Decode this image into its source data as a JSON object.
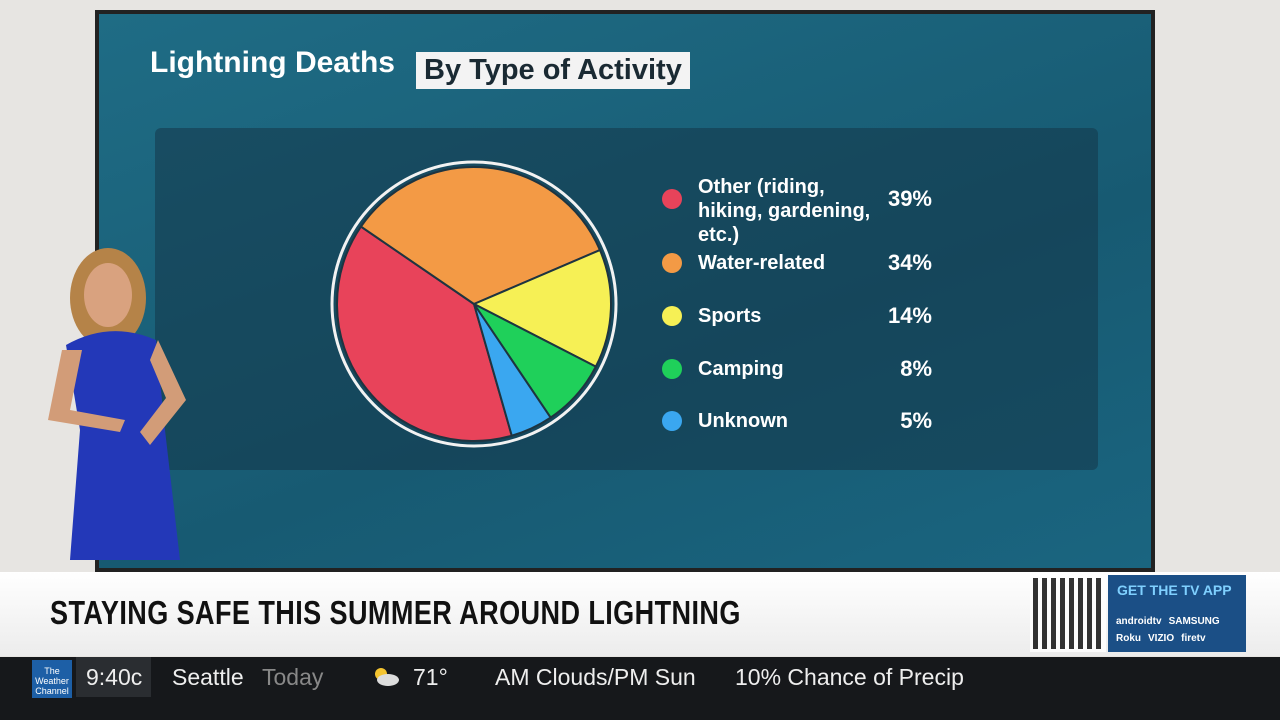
{
  "chart_data": {
    "type": "pie",
    "title": "Lightning Deaths",
    "subtitle": "By Type of Activity",
    "categories": [
      "Other (riding, hiking, gardening, etc.)",
      "Water-related",
      "Sports",
      "Camping",
      "Unknown"
    ],
    "values": [
      39,
      34,
      14,
      8,
      5
    ],
    "value_labels": [
      "39%",
      "34%",
      "14%",
      "8%",
      "5%"
    ],
    "colors": [
      "#e8435a",
      "#f39a45",
      "#f6f055",
      "#1fd05a",
      "#3aa7f0"
    ]
  },
  "lower_third": {
    "headline": "STAYING SAFE THIS SUMMER AROUND LIGHTNING",
    "app_promo": "GET THE TV APP",
    "platforms": [
      "androidtv",
      "SAMSUNG",
      "Roku",
      "VIZIO",
      "firetv"
    ]
  },
  "ticker": {
    "logo": "The Weather Channel",
    "time": "9:40c",
    "city": "Seattle",
    "day": "Today",
    "temperature": "71°",
    "conditions": "AM Clouds/PM Sun",
    "precip": "10% Chance of Precip"
  }
}
